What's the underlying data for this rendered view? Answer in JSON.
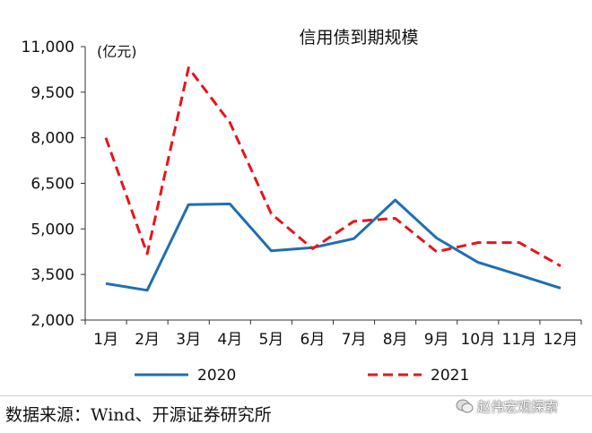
{
  "chart_data": {
    "type": "line",
    "title": "信用债到期规模",
    "unit_label": "(亿元)",
    "categories": [
      "1月",
      "2月",
      "3月",
      "4月",
      "5月",
      "6月",
      "7月",
      "8月",
      "9月",
      "10月",
      "11月",
      "12月"
    ],
    "y_ticks": [
      "11,000",
      "9,500",
      "8,000",
      "6,500",
      "5,000",
      "3,500",
      "2,000"
    ],
    "ylim": [
      2000,
      11000
    ],
    "series": [
      {
        "name": "2020",
        "color": "#1f6fb2",
        "style": "solid",
        "values": [
          3200,
          2980,
          5800,
          5820,
          4280,
          4380,
          4680,
          5950,
          4700,
          3900,
          3480,
          3050
        ]
      },
      {
        "name": "2021",
        "color": "#e8141b",
        "style": "dashed",
        "values": [
          8000,
          4180,
          10300,
          8500,
          5500,
          4350,
          5250,
          5350,
          4250,
          4550,
          4550,
          3780
        ]
      }
    ]
  },
  "footer": {
    "source": "数据来源：Wind、开源证券研究所"
  },
  "watermark": {
    "text": "赵伟宏观探索"
  }
}
